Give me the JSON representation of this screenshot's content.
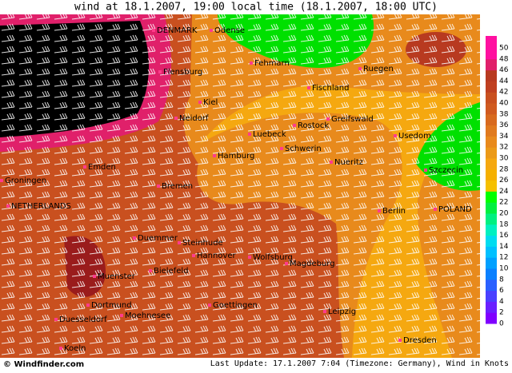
{
  "title": "wind at 18.1.2007, 19:00 local time (18.1.2007, 18:00 UTC)",
  "cities": [
    "Odense",
    "DENMARK",
    "Flensburg",
    "Fehmarn",
    "Ruegen",
    "Fischland",
    "Kiel",
    "Neidorf",
    "Luebeck",
    "Rostock",
    "Greifswald",
    "Usedom",
    "Hamburg",
    "Schwerin",
    "Szczecin",
    "Emden",
    "Nueritz",
    "Groningen",
    "Bremen",
    "NETHERLANDS",
    "POLAND",
    "Berlin",
    "Duemmer",
    "Steinhude",
    "Hannover",
    "Wolfsburg",
    "Magdeburg",
    "Muenster",
    "Bielefeld",
    "Dortmund",
    "Goettingen",
    "Duesseldorf",
    "Moehnesee",
    "Leipzig",
    "Dresden",
    "Koeln"
  ],
  "legend": {
    "ticks": [
      0,
      2,
      4,
      6,
      8,
      10,
      12,
      14,
      16,
      18,
      20,
      22,
      24,
      26,
      28,
      30,
      32,
      34,
      36,
      38,
      40,
      42,
      44,
      46,
      48,
      50
    ],
    "colors": [
      "#8000ff",
      "#6a20ff",
      "#4a40ff",
      "#2a60ff",
      "#0a80ff",
      "#00a0ff",
      "#00c0ff",
      "#00dcf0",
      "#00f0c0",
      "#00f080",
      "#00f040",
      "#00ff00",
      "#f5c000",
      "#f5b000",
      "#f5a810",
      "#eb9a18",
      "#e88a1c",
      "#e07a1e",
      "#d86a1e",
      "#d05a1f",
      "#c9501f",
      "#c04020",
      "#b83a20",
      "#e0206a",
      "#ff10a0"
    ]
  },
  "footer": {
    "copyright": "© Windfinder.com",
    "update": "Last Update: 17.1.2007 7:04 (Timezone: Germany), Wind in Knots"
  }
}
